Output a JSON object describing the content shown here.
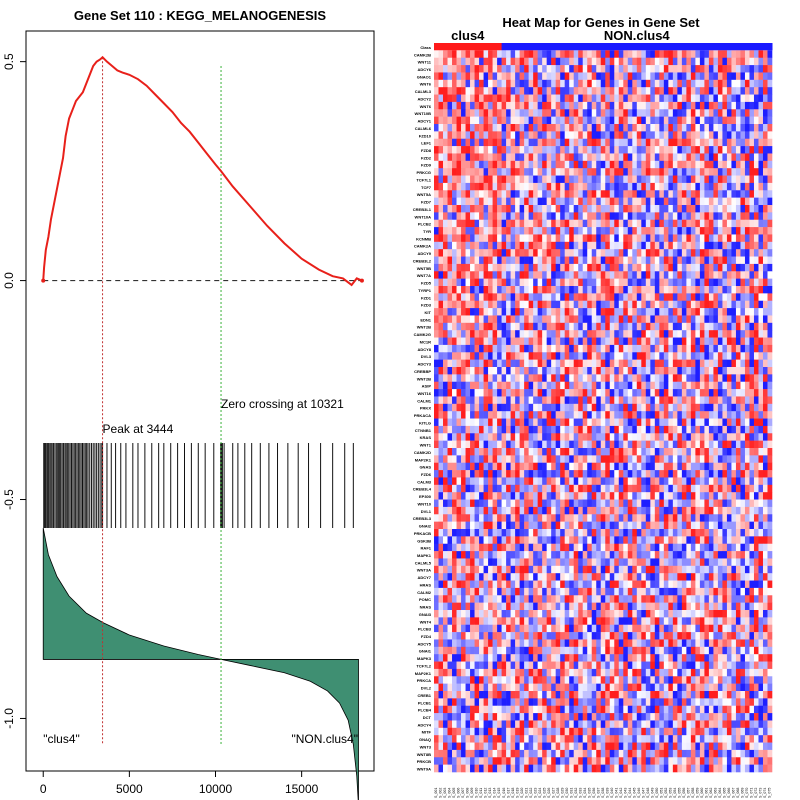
{
  "chart_data": [
    {
      "type": "line",
      "title": "Gene Set  110 : KEGG_MELANOGENESIS",
      "xlabel": "",
      "ylabel": "",
      "xlim": [
        -1000,
        19200
      ],
      "ylim": [
        -1.12,
        0.57
      ],
      "x_ticks": [
        0,
        5000,
        10000,
        15000
      ],
      "x_tick_labels": [
        "0",
        "5000",
        "10000",
        "15000"
      ],
      "y_ticks": [
        0.5,
        0.0,
        -0.5,
        -1.0
      ],
      "y_tick_labels": [
        "0.5",
        "0.0",
        "-0.5",
        "-1.0"
      ],
      "colors": {
        "running_es": "#e8201a",
        "peak_line": "#c03030",
        "zero_line": "#3bb23b",
        "baseline": "#333333",
        "metric_fill": "#3f8f72",
        "hits": "#111111"
      },
      "series": [
        {
          "name": "Running Enrichment Score",
          "x": [
            0,
            50,
            150,
            300,
            450,
            600,
            800,
            1000,
            1150,
            1300,
            1500,
            1700,
            1900,
            2100,
            2300,
            2500,
            2700,
            2900,
            3100,
            3300,
            3444,
            3700,
            4000,
            4300,
            4600,
            5000,
            5500,
            6000,
            6500,
            7000,
            7500,
            8000,
            8500,
            9000,
            9500,
            10000,
            10321,
            11000,
            12000,
            13000,
            14000,
            15000,
            16000,
            16800,
            17400,
            17900,
            18200,
            18500
          ],
          "values": [
            0.0,
            0.03,
            0.07,
            0.1,
            0.14,
            0.17,
            0.21,
            0.25,
            0.28,
            0.33,
            0.37,
            0.39,
            0.41,
            0.42,
            0.43,
            0.45,
            0.47,
            0.49,
            0.5,
            0.505,
            0.51,
            0.5,
            0.49,
            0.48,
            0.475,
            0.47,
            0.46,
            0.445,
            0.425,
            0.405,
            0.385,
            0.36,
            0.34,
            0.315,
            0.29,
            0.265,
            0.25,
            0.215,
            0.17,
            0.125,
            0.085,
            0.05,
            0.025,
            0.01,
            0.005,
            -0.01,
            0.005,
            0.0
          ]
        }
      ],
      "hits": [
        30,
        80,
        120,
        170,
        240,
        300,
        380,
        450,
        520,
        600,
        680,
        760,
        840,
        900,
        960,
        1020,
        1100,
        1180,
        1260,
        1330,
        1400,
        1480,
        1560,
        1640,
        1720,
        1800,
        1880,
        1960,
        2040,
        2120,
        2200,
        2280,
        2360,
        2440,
        2520,
        2600,
        2700,
        2800,
        2900,
        3000,
        3100,
        3200,
        3300,
        3400,
        3444,
        3700,
        3950,
        4200,
        4500,
        4800,
        5200,
        5500,
        5900,
        6300,
        6700,
        7000,
        7400,
        7800,
        8200,
        8600,
        9000,
        9400,
        9900,
        10300,
        10350,
        10400,
        10500,
        11000,
        11300,
        11700,
        12100,
        12600,
        13100,
        13600,
        14200,
        14800,
        15400,
        16100,
        16800,
        17500,
        18000
      ],
      "metric": {
        "x": [
          0,
          300,
          800,
          1500,
          2500,
          3500,
          5000,
          7000,
          9000,
          10321,
          12000,
          14000,
          15500,
          16500,
          17200,
          17700,
          18000,
          18200,
          18300
        ],
        "values": [
          0.54,
          0.43,
          0.34,
          0.26,
          0.19,
          0.15,
          0.1,
          0.055,
          0.02,
          0.0,
          -0.025,
          -0.055,
          -0.09,
          -0.13,
          -0.18,
          -0.25,
          -0.35,
          -0.48,
          -0.6
        ]
      },
      "annotations": {
        "peak_label": "Peak at 3444",
        "peak_x": 3444,
        "zero_label": "Zero crossing at 10321",
        "zero_x": 10321,
        "left_label": "\"clus4\"",
        "right_label": "\"NON.clus4\""
      }
    },
    {
      "type": "heatmap",
      "title": "Heat Map for Genes in Gene Set",
      "groups": [
        {
          "name": "clus4",
          "count": 15,
          "color": "#ff1a1a"
        },
        {
          "name": "NON.clus4",
          "count": 60,
          "color": "#1a1aff"
        }
      ],
      "class_row_label": "Class",
      "row_labels": [
        "CAMK2B",
        "WNT11",
        "ADCY6",
        "GNAO1",
        "WNT6",
        "CALML3",
        "ADCY2",
        "WNT6",
        "WNT10B",
        "ADCY1",
        "CALML6",
        "FZD10",
        "LEF1",
        "FZD8",
        "FZD2",
        "FZD9",
        "PRKCG",
        "TCF7L1",
        "TCF7",
        "WNT5A",
        "FZD7",
        "CREB3L1",
        "WNT10A",
        "PLCB2",
        "TYR",
        "KCNMB",
        "CAMK2A",
        "ADCY9",
        "CREB3L2",
        "WNT5B",
        "WNT7A",
        "FZD5",
        "TYRP1",
        "FZD1",
        "FZD3",
        "KIT",
        "EDN1",
        "WNT2B",
        "CAMK2G",
        "MC1R",
        "ADCY8",
        "DVL3",
        "ADCY3",
        "CREBBP",
        "WNT2B",
        "ASIP",
        "WNT16",
        "CALM1",
        "PRKX",
        "PRKACA",
        "KITLG",
        "CTNNB1",
        "KRAS",
        "WNT1",
        "CAMK2D",
        "MAP2K1",
        "GNAS",
        "FZD6",
        "CALM3",
        "CREB3L4",
        "EP300",
        "WNT10",
        "DVL1",
        "CREB3L3",
        "GNAI2",
        "PRKACB",
        "GSK3B",
        "RAF1",
        "MAPK1",
        "CALML5",
        "WNT3A",
        "ADCY7",
        "HRAS",
        "CALM2",
        "POMC",
        "NRAS",
        "GNAI3",
        "WNT4",
        "PLCB3",
        "FZD4",
        "ADCY5",
        "GNAI1",
        "MAPK3",
        "TCF7L2",
        "MAP2K1",
        "PRKCA",
        "DVL2",
        "CREB1",
        "PLCB1",
        "PLCB4",
        "DCT",
        "ADCY4",
        "MITF",
        "GNAQ",
        "WNT3",
        "WNT8B",
        "PRKCB",
        "WNT9A"
      ],
      "column_labels": [
        "S_001",
        "S_002",
        "S_003",
        "S_004",
        "S_005",
        "S_006",
        "S_007",
        "S_008",
        "S_009",
        "S_010",
        "S_011",
        "S_012",
        "S_013",
        "S_014",
        "S_015",
        "S_016",
        "S_017",
        "S_018",
        "S_019",
        "S_020",
        "S_021",
        "S_022",
        "S_023",
        "S_024",
        "S_025",
        "S_026",
        "S_027",
        "S_028",
        "S_029",
        "S_030",
        "S_031",
        "S_032",
        "S_033",
        "S_034",
        "S_035",
        "S_036",
        "S_037",
        "S_038",
        "S_039",
        "S_040",
        "S_041",
        "S_042",
        "S_043",
        "S_044",
        "S_045",
        "S_046",
        "S_047",
        "S_048",
        "S_049",
        "S_050",
        "S_051",
        "S_052",
        "S_053",
        "S_054",
        "S_055",
        "S_056",
        "S_057",
        "S_058",
        "S_059",
        "S_060",
        "S_061",
        "S_062",
        "S_063",
        "S_064",
        "S_065",
        "S_066",
        "S_067",
        "S_068",
        "S_069",
        "S_070",
        "S_071",
        "S_072",
        "S_073",
        "S_074",
        "S_075"
      ]
    }
  ]
}
